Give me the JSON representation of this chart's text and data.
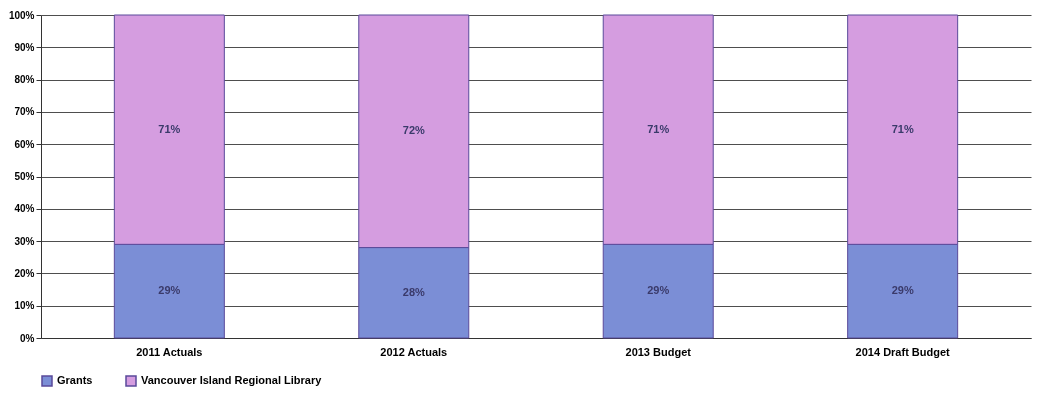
{
  "chart_data": {
    "type": "bar",
    "stacked": true,
    "categories": [
      "2011 Actuals",
      "2012 Actuals",
      "2013 Budget",
      "2014 Draft Budget"
    ],
    "series": [
      {
        "name": "Grants",
        "color": "#7b8ed6",
        "values": [
          29,
          28,
          29,
          29
        ],
        "value_labels": [
          "29%",
          "28%",
          "29%",
          "29%"
        ]
      },
      {
        "name": "Vancouver Island Regional Library",
        "color": "#d59de0",
        "values": [
          71,
          72,
          71,
          71
        ],
        "value_labels": [
          "71%",
          "72%",
          "71%",
          "71%"
        ]
      }
    ],
    "ylim": [
      0,
      100
    ],
    "yticks": [
      {
        "value": 0,
        "label": "0%"
      },
      {
        "value": 10,
        "label": "10%"
      },
      {
        "value": 20,
        "label": "20%"
      },
      {
        "value": 30,
        "label": "30%"
      },
      {
        "value": 40,
        "label": "40%"
      },
      {
        "value": 50,
        "label": "50%"
      },
      {
        "value": 60,
        "label": "60%"
      },
      {
        "value": 70,
        "label": "70%"
      },
      {
        "value": 80,
        "label": "80%"
      },
      {
        "value": 90,
        "label": "90%"
      },
      {
        "value": 100,
        "label": "100%"
      }
    ],
    "grid": "y",
    "legend": "bottom"
  }
}
